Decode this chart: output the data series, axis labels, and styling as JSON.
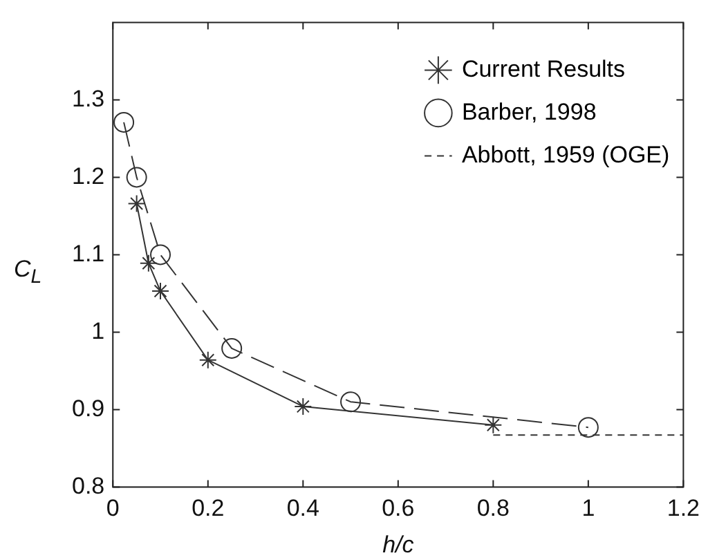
{
  "chart_data": {
    "type": "line",
    "xlabel": "h/c",
    "ylabel": "C$_{L}$",
    "xlim": [
      0,
      1.2
    ],
    "xticks": [
      0,
      0.2,
      0.4,
      0.6,
      0.8,
      1,
      1.2
    ],
    "ylim": [
      0.8,
      1.4
    ],
    "yticks": [
      0.8,
      0.9,
      1,
      1.1,
      1.2,
      1.3
    ],
    "grid": false,
    "legend": "top right",
    "series": [
      {
        "name": "Current Results",
        "color": "#333333",
        "marker": "cross",
        "line_style": "solid",
        "x": [
          0.05,
          0.075,
          0.1,
          0.2,
          0.4,
          0.8
        ],
        "values": [
          1.166,
          1.089,
          1.053,
          0.964,
          0.904,
          0.88
        ]
      },
      {
        "name": "Barber, 1998",
        "color": "#333333",
        "marker": "circle",
        "line_style": "dashed",
        "x": [
          0.023,
          0.05,
          0.1,
          0.25,
          0.5,
          1
        ],
        "values": [
          1.271,
          1.2,
          1.1,
          0.979,
          0.91,
          0.877
        ]
      },
      {
        "name": "Abbott, 1959 (OGE)",
        "color": "#333333",
        "marker": "none",
        "line_style": "dashed",
        "x": [
          0.8,
          1.2
        ],
        "values": [
          0.867,
          0.867
        ]
      }
    ]
  }
}
